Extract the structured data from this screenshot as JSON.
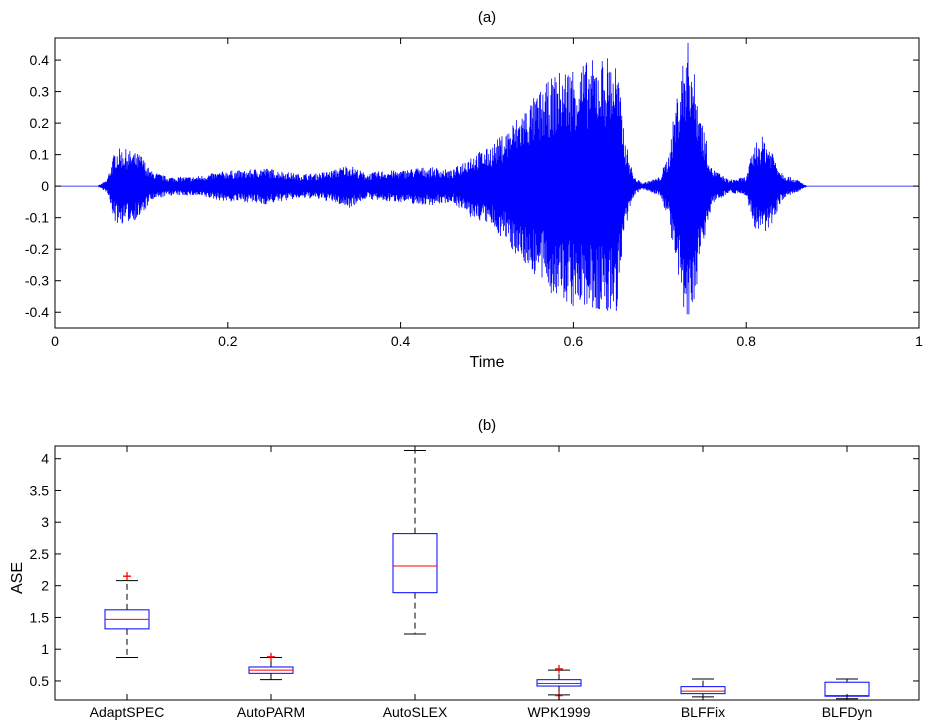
{
  "chart_data": [
    {
      "type": "line",
      "title": "(a)",
      "xlabel": "Time",
      "ylabel": "",
      "xlim": [
        0,
        1
      ],
      "ylim": [
        -0.45,
        0.47
      ],
      "xticks": [
        0,
        0.2,
        0.4,
        0.6,
        0.8,
        1
      ],
      "xtick_labels": [
        "0",
        "0.2",
        "0.4",
        "0.6",
        "0.8",
        "1"
      ],
      "yticks": [
        -0.4,
        -0.3,
        -0.2,
        -0.1,
        0,
        0.1,
        0.2,
        0.3,
        0.4
      ],
      "ytick_labels": [
        "-0.4",
        "-0.3",
        "-0.2",
        "-0.1",
        "0",
        "0.1",
        "0.2",
        "0.3",
        "0.4"
      ],
      "grid": false,
      "color": "#0000ff",
      "envelope": {
        "t": [
          0,
          0.05,
          0.06,
          0.07,
          0.08,
          0.1,
          0.11,
          0.13,
          0.16,
          0.18,
          0.2,
          0.22,
          0.24,
          0.26,
          0.28,
          0.3,
          0.32,
          0.34,
          0.36,
          0.38,
          0.4,
          0.42,
          0.44,
          0.46,
          0.48,
          0.5,
          0.52,
          0.54,
          0.56,
          0.58,
          0.6,
          0.62,
          0.64,
          0.65,
          0.66,
          0.67,
          0.68,
          0.7,
          0.71,
          0.72,
          0.73,
          0.735,
          0.74,
          0.75,
          0.76,
          0.78,
          0.8,
          0.81,
          0.82,
          0.83,
          0.84,
          0.85,
          0.86,
          0.87,
          1
        ],
        "amp": [
          0,
          0,
          0.02,
          0.12,
          0.12,
          0.1,
          0.05,
          0.03,
          0.03,
          0.04,
          0.05,
          0.05,
          0.06,
          0.05,
          0.04,
          0.04,
          0.05,
          0.07,
          0.04,
          0.05,
          0.05,
          0.06,
          0.06,
          0.05,
          0.1,
          0.12,
          0.17,
          0.24,
          0.3,
          0.36,
          0.39,
          0.4,
          0.42,
          0.4,
          0.15,
          0.03,
          0.01,
          0.03,
          0.1,
          0.3,
          0.45,
          0.47,
          0.36,
          0.2,
          0.06,
          0.02,
          0.03,
          0.14,
          0.16,
          0.12,
          0.05,
          0.03,
          0.02,
          0,
          0
        ]
      }
    },
    {
      "type": "box",
      "title": "(b)",
      "xlabel": "",
      "ylabel": "ASE",
      "ylim": [
        0.2,
        4.2
      ],
      "yticks": [
        0.5,
        1,
        1.5,
        2,
        2.5,
        3,
        3.5,
        4
      ],
      "ytick_labels": [
        "0.5",
        "1",
        "1.5",
        "2",
        "2.5",
        "3",
        "3.5",
        "4"
      ],
      "grid": false,
      "box_color": "#0000ff",
      "median_color": "#ff0000",
      "whisker_color": "#000000",
      "outlier_color": "#ff0000",
      "categories": [
        "AdaptSPEC",
        "AutoPARM",
        "AutoSLEX",
        "WPK1999",
        "BLFFix",
        "BLFDyn"
      ],
      "boxes": [
        {
          "category": "AdaptSPEC",
          "whisker_low": 0.87,
          "q1": 1.32,
          "median": 1.47,
          "q3": 1.62,
          "whisker_high": 2.08,
          "outliers": [
            2.15
          ]
        },
        {
          "category": "AutoPARM",
          "whisker_low": 0.52,
          "q1": 0.62,
          "median": 0.67,
          "q3": 0.72,
          "whisker_high": 0.87,
          "outliers": [
            0.88
          ]
        },
        {
          "category": "AutoSLEX",
          "whisker_low": 1.24,
          "q1": 1.89,
          "median": 2.31,
          "q3": 2.82,
          "whisker_high": 4.13,
          "outliers": []
        },
        {
          "category": "WPK1999",
          "whisker_low": 0.28,
          "q1": 0.42,
          "median": 0.46,
          "q3": 0.52,
          "whisker_high": 0.67,
          "outliers": [
            0.27,
            0.69
          ]
        },
        {
          "category": "BLFFix",
          "whisker_low": 0.25,
          "q1": 0.3,
          "median": 0.34,
          "q3": 0.41,
          "whisker_high": 0.53,
          "outliers": []
        },
        {
          "category": "BLFDyn",
          "whisker_low": 0.22,
          "q1": 0.26,
          "median": 0.27,
          "q3": 0.48,
          "whisker_high": 0.53,
          "outliers": []
        }
      ]
    }
  ]
}
